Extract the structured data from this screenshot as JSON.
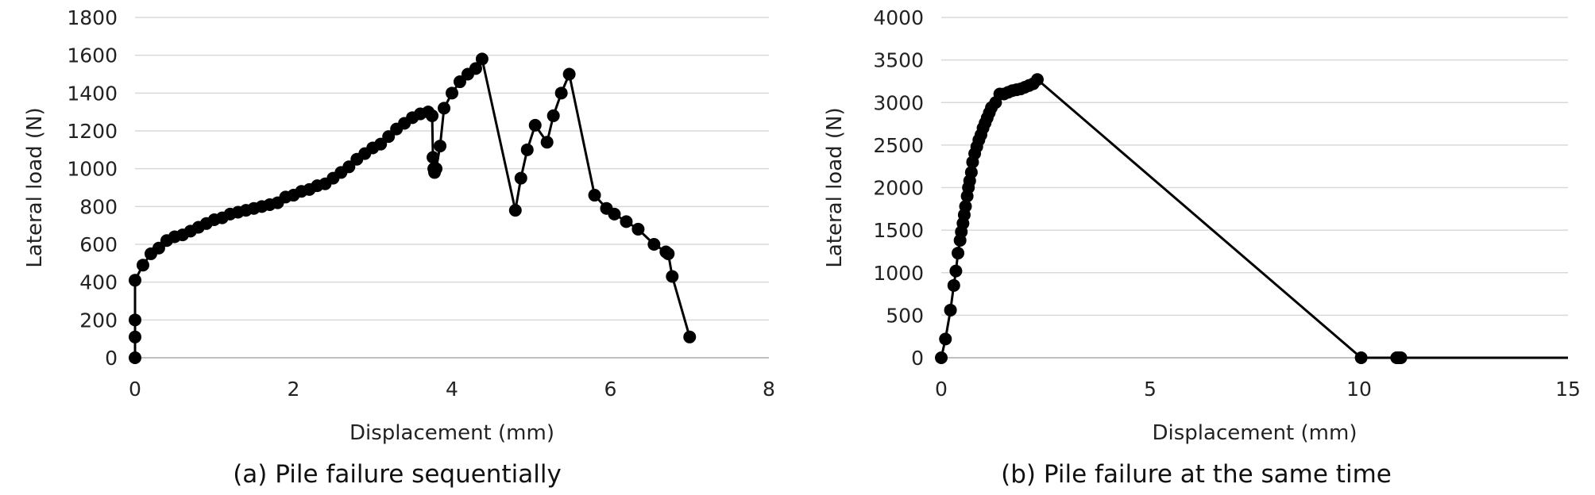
{
  "chart_data": [
    {
      "type": "line",
      "caption": "(a) Pile failure sequentially",
      "xlabel": "Displacement (mm)",
      "ylabel": "Lateral load (N)",
      "xlim": [
        0,
        8
      ],
      "ylim": [
        0,
        1800
      ],
      "xticks": [
        0,
        2,
        4,
        6,
        8
      ],
      "yticks": [
        0,
        200,
        400,
        600,
        800,
        1000,
        1200,
        1400,
        1600,
        1800
      ],
      "grid": true,
      "marker": "circle",
      "series": [
        {
          "x": [
            0,
            0,
            0,
            0,
            0.1,
            0.2,
            0.3,
            0.4,
            0.5,
            0.6,
            0.7,
            0.8,
            0.9,
            1.0,
            1.1,
            1.2,
            1.3,
            1.4,
            1.5,
            1.6,
            1.7,
            1.8,
            1.9,
            2.0,
            2.1,
            2.2,
            2.3,
            2.4,
            2.5,
            2.6,
            2.7,
            2.8,
            2.9,
            3.0,
            3.1,
            3.2,
            3.3,
            3.4,
            3.5,
            3.6,
            3.7,
            3.75,
            3.76,
            3.77,
            3.78,
            3.8,
            3.85,
            3.9,
            4.0,
            4.1,
            4.2,
            4.3,
            4.38,
            4.8,
            4.87,
            4.95,
            5.05,
            5.2,
            5.28,
            5.38,
            5.48,
            5.8,
            5.95,
            6.05,
            6.2,
            6.35,
            6.55,
            6.7,
            6.73,
            6.78,
            7.0
          ],
          "y": [
            0,
            110,
            200,
            410,
            490,
            550,
            580,
            620,
            640,
            650,
            670,
            690,
            710,
            730,
            740,
            760,
            770,
            780,
            790,
            800,
            810,
            820,
            850,
            860,
            880,
            890,
            910,
            920,
            950,
            980,
            1010,
            1050,
            1080,
            1110,
            1130,
            1170,
            1210,
            1240,
            1270,
            1290,
            1300,
            1280,
            1060,
            1000,
            980,
            1000,
            1120,
            1320,
            1400,
            1460,
            1500,
            1530,
            1580,
            780,
            950,
            1100,
            1230,
            1140,
            1280,
            1400,
            1500,
            860,
            790,
            760,
            720,
            680,
            600,
            560,
            550,
            430,
            110
          ]
        }
      ]
    },
    {
      "type": "line",
      "caption": "(b) Pile failure at the same time",
      "xlabel": "Displacement (mm)",
      "ylabel": "Lateral load (N)",
      "xlim": [
        0,
        15
      ],
      "ylim": [
        0,
        4000
      ],
      "xticks": [
        0,
        5,
        10,
        15
      ],
      "yticks": [
        0,
        500,
        1000,
        1500,
        2000,
        2500,
        3000,
        3500,
        4000
      ],
      "grid": true,
      "marker": "circle",
      "series": [
        {
          "x": [
            0,
            0.1,
            0.22,
            0.3,
            0.35,
            0.4,
            0.45,
            0.48,
            0.52,
            0.55,
            0.58,
            0.62,
            0.65,
            0.68,
            0.72,
            0.75,
            0.8,
            0.85,
            0.9,
            0.95,
            1.0,
            1.05,
            1.1,
            1.15,
            1.2,
            1.3,
            1.4,
            1.5,
            1.6,
            1.7,
            1.8,
            1.9,
            2.0,
            2.1,
            2.2,
            2.3,
            10.05,
            10.9,
            10.95,
            11.0,
            15.0
          ],
          "y": [
            0,
            220,
            560,
            850,
            1020,
            1230,
            1380,
            1480,
            1580,
            1680,
            1780,
            1900,
            2000,
            2080,
            2180,
            2300,
            2400,
            2480,
            2560,
            2620,
            2700,
            2760,
            2820,
            2880,
            2940,
            3000,
            3100,
            3100,
            3120,
            3140,
            3150,
            3160,
            3180,
            3200,
            3220,
            3270,
            0,
            0,
            0,
            0,
            0
          ],
          "markers_until_index": 39
        }
      ]
    }
  ]
}
